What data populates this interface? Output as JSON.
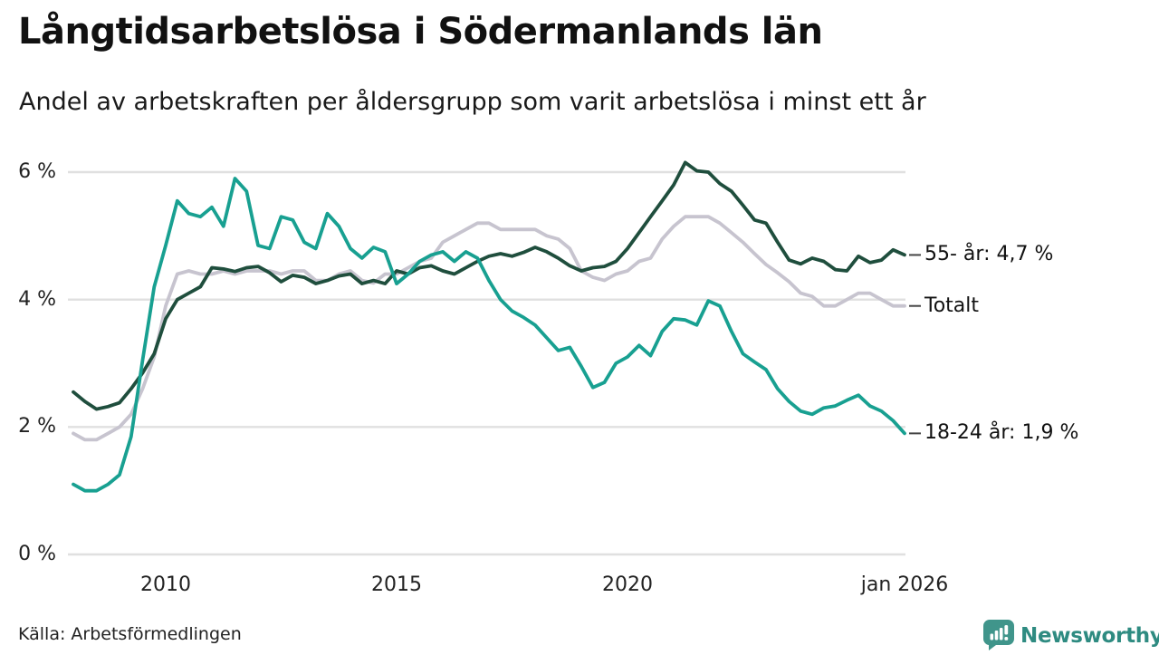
{
  "header": {
    "title": "Långtidsarbetslösa i Södermanlands län",
    "subtitle": "Andel av arbetskraften per åldersgrupp som varit arbetslösa i minst ett år"
  },
  "footer": {
    "source": "Källa: Arbetsförmedlingen",
    "brand": "Newsworthy"
  },
  "colors": {
    "grid": "#e0e0e0",
    "axis_text": "#222222",
    "connector": "#444444",
    "series_55": "#1f4e3d",
    "series_total": "#c7c4cf",
    "series_18_24": "#18a091",
    "logo_teal": "#40958b",
    "logo_text_teal": "#2e8b81"
  },
  "chart_data": {
    "type": "line",
    "title": "Långtidsarbetslösa i Södermanlands län",
    "subtitle": "Andel av arbetskraften per åldersgrupp som varit arbetslösa i minst ett år",
    "unit": "%",
    "grid": "horizontal",
    "legend_position": "end-of-line-labels",
    "ylim": [
      0,
      6.3
    ],
    "xlim": [
      2008.0,
      2026.0
    ],
    "yticks": [
      {
        "value": 6,
        "label": "6 %"
      },
      {
        "value": 4,
        "label": "4 %"
      },
      {
        "value": 2,
        "label": "2 %"
      },
      {
        "value": 0,
        "label": "0 %"
      }
    ],
    "xticks": [
      {
        "value": 2010,
        "label": "2010"
      },
      {
        "value": 2015,
        "label": "2015"
      },
      {
        "value": 2020,
        "label": "2020"
      },
      {
        "value": 2026,
        "label": "jan 2026"
      }
    ],
    "x": [
      2008.0,
      2008.25,
      2008.5,
      2008.75,
      2009.0,
      2009.25,
      2009.5,
      2009.75,
      2010.0,
      2010.25,
      2010.5,
      2010.75,
      2011.0,
      2011.25,
      2011.5,
      2011.75,
      2012.0,
      2012.25,
      2012.5,
      2012.75,
      2013.0,
      2013.25,
      2013.5,
      2013.75,
      2014.0,
      2014.25,
      2014.5,
      2014.75,
      2015.0,
      2015.25,
      2015.5,
      2015.75,
      2016.0,
      2016.25,
      2016.5,
      2016.75,
      2017.0,
      2017.25,
      2017.5,
      2017.75,
      2018.0,
      2018.25,
      2018.5,
      2018.75,
      2019.0,
      2019.25,
      2019.5,
      2019.75,
      2020.0,
      2020.25,
      2020.5,
      2020.75,
      2021.0,
      2021.25,
      2021.5,
      2021.75,
      2022.0,
      2022.25,
      2022.5,
      2022.75,
      2023.0,
      2023.25,
      2023.5,
      2023.75,
      2024.0,
      2024.25,
      2024.5,
      2024.75,
      2025.0,
      2025.25,
      2025.5,
      2025.75,
      2026.0
    ],
    "series": [
      {
        "name": "55- år",
        "end_label": "55- år: 4,7 %",
        "end_value_label": "4,7 %",
        "color": "#1f4e3d",
        "values": [
          2.55,
          2.4,
          2.28,
          2.32,
          2.38,
          2.6,
          2.85,
          3.15,
          3.7,
          4.0,
          4.1,
          4.2,
          4.5,
          4.48,
          4.44,
          4.5,
          4.52,
          4.42,
          4.28,
          4.38,
          4.35,
          4.25,
          4.3,
          4.37,
          4.4,
          4.25,
          4.3,
          4.25,
          4.45,
          4.4,
          4.5,
          4.53,
          4.45,
          4.4,
          4.5,
          4.6,
          4.68,
          4.72,
          4.68,
          4.74,
          4.82,
          4.75,
          4.65,
          4.53,
          4.45,
          4.5,
          4.52,
          4.6,
          4.8,
          5.05,
          5.3,
          5.55,
          5.8,
          6.15,
          6.02,
          6.0,
          5.82,
          5.7,
          5.48,
          5.25,
          5.2,
          4.9,
          4.62,
          4.56,
          4.65,
          4.6,
          4.47,
          4.45,
          4.68,
          4.58,
          4.62,
          4.78,
          4.7
        ]
      },
      {
        "name": "Totalt",
        "end_label": "Totalt",
        "end_value_label": "",
        "color": "#c7c4cf",
        "values": [
          1.9,
          1.8,
          1.8,
          1.9,
          2.0,
          2.2,
          2.6,
          3.1,
          3.9,
          4.4,
          4.45,
          4.4,
          4.4,
          4.45,
          4.4,
          4.45,
          4.45,
          4.45,
          4.4,
          4.45,
          4.45,
          4.3,
          4.3,
          4.4,
          4.45,
          4.3,
          4.26,
          4.4,
          4.4,
          4.5,
          4.6,
          4.65,
          4.9,
          5.0,
          5.1,
          5.2,
          5.2,
          5.1,
          5.1,
          5.1,
          5.1,
          5.0,
          4.95,
          4.8,
          4.45,
          4.35,
          4.3,
          4.4,
          4.45,
          4.6,
          4.65,
          4.95,
          5.15,
          5.3,
          5.3,
          5.3,
          5.2,
          5.05,
          4.9,
          4.72,
          4.55,
          4.42,
          4.28,
          4.1,
          4.05,
          3.9,
          3.9,
          4.0,
          4.1,
          4.1,
          4.0,
          3.9,
          3.9
        ]
      },
      {
        "name": "18-24 år",
        "end_label": "18-24 år: 1,9 %",
        "end_value_label": "1,9 %",
        "color": "#18a091",
        "values": [
          1.1,
          1.0,
          1.0,
          1.1,
          1.25,
          1.85,
          3.05,
          4.2,
          4.85,
          5.55,
          5.35,
          5.3,
          5.45,
          5.15,
          5.9,
          5.7,
          4.85,
          4.8,
          5.3,
          5.25,
          4.9,
          4.8,
          5.35,
          5.15,
          4.8,
          4.65,
          4.82,
          4.75,
          4.25,
          4.4,
          4.6,
          4.7,
          4.75,
          4.6,
          4.75,
          4.65,
          4.3,
          4.0,
          3.82,
          3.72,
          3.6,
          3.4,
          3.2,
          3.25,
          2.95,
          2.62,
          2.7,
          3.0,
          3.1,
          3.28,
          3.12,
          3.5,
          3.7,
          3.68,
          3.6,
          3.98,
          3.9,
          3.5,
          3.15,
          3.02,
          2.9,
          2.6,
          2.4,
          2.25,
          2.2,
          2.3,
          2.33,
          2.42,
          2.5,
          2.33,
          2.25,
          2.1,
          1.9
        ]
      }
    ]
  }
}
